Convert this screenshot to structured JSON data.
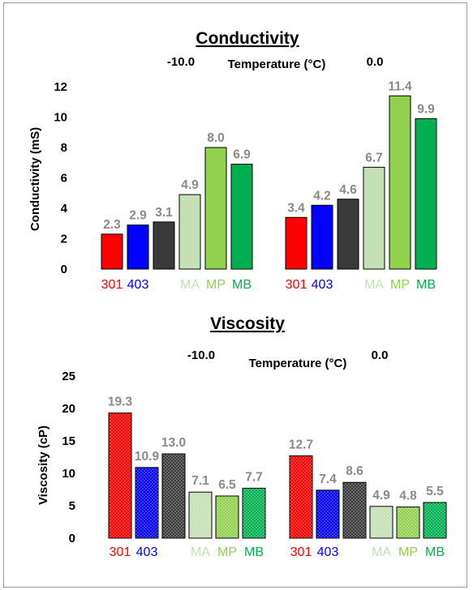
{
  "colors": {
    "301": "#ff0000",
    "403": "#0000ff",
    "dark": "#3a3a3a",
    "MA": "#c5e0b4",
    "MP": "#92d050",
    "MB": "#00b050",
    "datalabel": "#8a8a8a"
  },
  "chart_data": [
    {
      "type": "bar",
      "title": "Conductivity",
      "xlabel": "Temperature (°C)",
      "ylabel": "Conductivity (mS)",
      "ylim": [
        0,
        12
      ],
      "yticks": [
        "0",
        "2",
        "4",
        "6",
        "8",
        "10",
        "12"
      ],
      "groups": [
        "-10.0",
        "0.0"
      ],
      "categories": [
        "301",
        "403",
        "",
        "MA",
        "MP",
        "MB"
      ],
      "series": [
        {
          "group": "-10.0",
          "values": [
            2.3,
            2.9,
            3.1,
            4.9,
            8.0,
            6.9
          ],
          "labels": [
            "2.3",
            "2.9",
            "3.1",
            "4.9",
            "8.0",
            "6.9"
          ]
        },
        {
          "group": "0.0",
          "values": [
            3.4,
            4.2,
            4.6,
            6.7,
            11.4,
            9.9
          ],
          "labels": [
            "3.4",
            "4.2",
            "4.6",
            "6.7",
            "11.4",
            "9.9"
          ]
        }
      ],
      "grid": false,
      "pattern": "solid"
    },
    {
      "type": "bar",
      "title": "Viscosity",
      "xlabel": "Temperature (°C)",
      "ylabel": "Viscosity (cP)",
      "ylim": [
        0,
        25
      ],
      "yticks": [
        "0",
        "5",
        "10",
        "15",
        "20",
        "25"
      ],
      "groups": [
        "-10.0",
        "0.0"
      ],
      "categories": [
        "301",
        "403",
        "",
        "MA",
        "MP",
        "MB"
      ],
      "series": [
        {
          "group": "-10.0",
          "values": [
            19.3,
            10.9,
            13.0,
            7.1,
            6.5,
            7.7
          ],
          "labels": [
            "19.3",
            "10.9",
            "13.0",
            "7.1",
            "6.5",
            "7.7"
          ]
        },
        {
          "group": "0.0",
          "values": [
            12.7,
            7.4,
            8.6,
            4.9,
            4.8,
            5.5
          ],
          "labels": [
            "12.7",
            "7.4",
            "8.6",
            "4.9",
            "4.8",
            "5.5"
          ]
        }
      ],
      "grid": false,
      "pattern": "dotted"
    }
  ]
}
